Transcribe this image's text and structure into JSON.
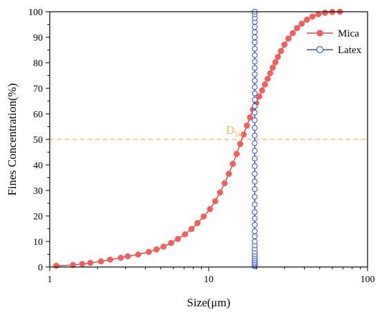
{
  "chart_data": {
    "type": "scatter",
    "title": "",
    "xlabel": "Size(μm)",
    "ylabel": "Fines Concentration(%)",
    "xscale": "log",
    "xlim": [
      1,
      100
    ],
    "ylim": [
      0,
      100
    ],
    "x_ticks": [
      "1",
      "10",
      "100"
    ],
    "y_ticks": [
      "0",
      "10",
      "20",
      "30",
      "40",
      "50",
      "60",
      "70",
      "80",
      "90",
      "100"
    ],
    "grid": false,
    "legend_position": "top-right",
    "series": [
      {
        "name": "Mica",
        "color": "#f0605e",
        "marker": "filled-circle",
        "x": [
          1.1,
          1.4,
          1.6,
          1.8,
          2.1,
          2.4,
          2.8,
          3.1,
          3.6,
          4.2,
          4.7,
          5.2,
          5.8,
          6.4,
          7.1,
          7.8,
          8.5,
          9.3,
          10.2,
          11.0,
          11.8,
          12.6,
          13.4,
          14.2,
          15.0,
          15.8,
          16.6,
          17.4,
          18.2,
          19.0,
          19.9,
          20.8,
          21.7,
          22.6,
          23.5,
          24.4,
          25.3,
          26.3,
          27.3,
          28.5,
          30.0,
          31.8,
          33.8,
          36.0,
          38.5,
          41.5,
          45.0,
          49.0,
          54.0,
          60.0,
          67.0
        ],
        "y": [
          0.5,
          0.8,
          1.2,
          1.6,
          2.2,
          2.9,
          3.6,
          4.2,
          4.9,
          5.9,
          6.9,
          8.0,
          9.4,
          11.0,
          12.8,
          14.9,
          17.2,
          19.8,
          22.7,
          25.8,
          29.2,
          32.8,
          36.5,
          40.4,
          44.3,
          48.2,
          51.9,
          55.4,
          58.6,
          61.6,
          64.3,
          66.8,
          69.2,
          71.5,
          73.7,
          75.9,
          78.1,
          80.2,
          82.3,
          84.6,
          87.1,
          89.5,
          91.6,
          93.6,
          95.3,
          96.9,
          98.1,
          99.0,
          99.6,
          99.9,
          100.0
        ]
      },
      {
        "name": "Latex",
        "color": "#3b5bdb",
        "marker": "open-circle",
        "x": [
          19.5,
          19.5,
          19.5,
          19.5,
          19.5,
          19.5,
          19.5,
          19.5,
          19.5,
          19.5,
          19.5,
          19.5,
          19.5,
          19.5,
          19.5,
          19.5,
          19.5,
          19.5,
          19.5,
          19.5,
          19.5,
          19.5,
          19.5,
          19.5,
          19.5,
          19.5,
          19.5,
          19.5,
          19.5,
          19.5,
          19.5,
          19.5,
          19.5,
          19.5,
          19.5,
          19.5,
          19.5,
          19.5,
          19.5,
          19.5,
          19.5,
          19.5,
          19.5,
          19.5,
          19.5,
          19.5,
          19.5,
          19.5
        ],
        "y": [
          0.3,
          0.8,
          1.4,
          2.0,
          2.7,
          3.4,
          4.2,
          5.0,
          6.0,
          7.2,
          8.5,
          10.0,
          12.0,
          14.0,
          16.5,
          19.0,
          21.5,
          24.5,
          27.5,
          30.5,
          33.5,
          36.5,
          39.5,
          42.5,
          45.5,
          48.5,
          51.5,
          54.5,
          57.5,
          60.5,
          63.0,
          65.5,
          68.0,
          70.5,
          73.0,
          75.5,
          78.0,
          80.5,
          83.0,
          85.5,
          88.0,
          90.0,
          92.0,
          94.0,
          96.0,
          97.5,
          99.0,
          100.0
        ]
      }
    ],
    "reference_lines": [
      {
        "orientation": "horizontal",
        "y": 50,
        "color": "#f5b94a",
        "style": "dashed",
        "label": "D",
        "label_sub": "50",
        "label_x": 14.5
      }
    ]
  }
}
